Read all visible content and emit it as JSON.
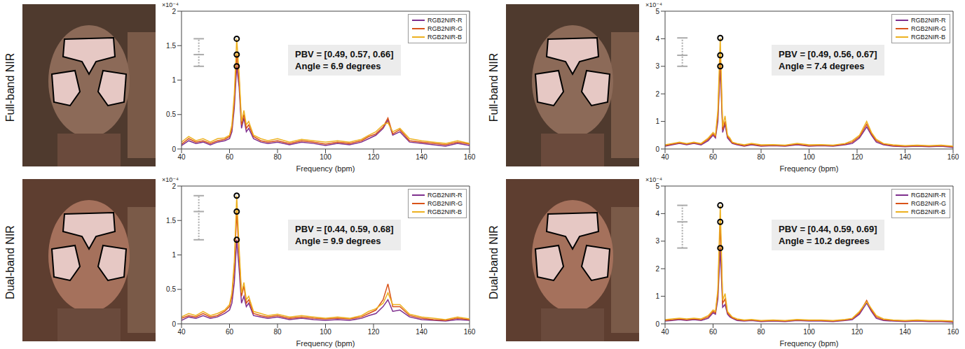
{
  "chart_data": [
    {
      "type": "line",
      "row_label": "Full-band NIR",
      "xlabel": "Frequency (bpm)",
      "y_multiplier": "×10⁻⁴",
      "annotations": [
        "PBV = [0.49, 0.57, 0.66]",
        "Angle = 6.9 degrees"
      ],
      "xlim": [
        40,
        160
      ],
      "xticks": [
        40,
        60,
        80,
        100,
        120,
        140,
        160
      ],
      "ylim": [
        0,
        2
      ],
      "yticks": [
        0,
        0.5,
        1,
        1.5,
        2
      ],
      "legend": "upper right",
      "x": [
        40,
        43,
        46,
        49,
        52,
        55,
        58,
        60,
        61,
        62,
        63,
        64,
        65,
        66,
        67,
        68,
        70,
        73,
        76,
        80,
        85,
        90,
        95,
        100,
        105,
        110,
        115,
        118,
        121,
        124,
        126,
        128,
        131,
        135,
        140,
        145,
        150,
        155,
        160
      ],
      "series": [
        {
          "name": "RGB2NIR-R",
          "color": "#7e2f8e",
          "values": [
            0.05,
            0.12,
            0.08,
            0.1,
            0.06,
            0.1,
            0.12,
            0.15,
            0.25,
            0.6,
            1.2,
            0.9,
            0.3,
            0.45,
            0.25,
            0.3,
            0.15,
            0.1,
            0.08,
            0.1,
            0.06,
            0.1,
            0.08,
            0.05,
            0.08,
            0.06,
            0.1,
            0.15,
            0.2,
            0.3,
            0.42,
            0.2,
            0.25,
            0.1,
            0.08,
            0.06,
            0.04,
            0.08,
            0.05
          ]
        },
        {
          "name": "RGB2NIR-G",
          "color": "#d95319",
          "values": [
            0.07,
            0.15,
            0.1,
            0.12,
            0.08,
            0.12,
            0.14,
            0.18,
            0.3,
            0.7,
            1.37,
            1.0,
            0.35,
            0.5,
            0.3,
            0.35,
            0.18,
            0.12,
            0.1,
            0.12,
            0.08,
            0.12,
            0.1,
            0.07,
            0.1,
            0.08,
            0.12,
            0.18,
            0.22,
            0.32,
            0.45,
            0.22,
            0.28,
            0.12,
            0.1,
            0.08,
            0.06,
            0.1,
            0.07
          ]
        },
        {
          "name": "RGB2NIR-B",
          "color": "#edb120",
          "values": [
            0.1,
            0.18,
            0.12,
            0.15,
            0.1,
            0.15,
            0.16,
            0.2,
            0.35,
            0.8,
            1.6,
            1.1,
            0.4,
            0.56,
            0.35,
            0.4,
            0.2,
            0.15,
            0.12,
            0.15,
            0.1,
            0.14,
            0.12,
            0.1,
            0.12,
            0.1,
            0.14,
            0.2,
            0.25,
            0.35,
            0.38,
            0.25,
            0.3,
            0.15,
            0.12,
            0.1,
            0.08,
            0.12,
            0.08
          ]
        }
      ]
    },
    {
      "type": "line",
      "row_label": "Dual-band NIR",
      "xlabel": "Frequency (bpm)",
      "y_multiplier": "×10⁻⁴",
      "annotations": [
        "PBV = [0.44, 0.59, 0.68]",
        "Angle = 9.9 degrees"
      ],
      "xlim": [
        40,
        160
      ],
      "xticks": [
        40,
        60,
        80,
        100,
        120,
        140,
        160
      ],
      "ylim": [
        0,
        2
      ],
      "yticks": [
        0,
        0.5,
        1,
        1.5,
        2
      ],
      "legend": "upper right",
      "x": [
        40,
        43,
        46,
        49,
        52,
        55,
        58,
        60,
        61,
        62,
        63,
        64,
        65,
        66,
        67,
        68,
        70,
        73,
        76,
        80,
        85,
        90,
        95,
        100,
        105,
        110,
        115,
        118,
        121,
        124,
        126,
        128,
        131,
        135,
        140,
        145,
        150,
        155,
        160
      ],
      "series": [
        {
          "name": "RGB2NIR-R",
          "color": "#7e2f8e",
          "values": [
            0.05,
            0.1,
            0.08,
            0.12,
            0.08,
            0.1,
            0.15,
            0.2,
            0.3,
            0.6,
            1.22,
            0.8,
            0.3,
            0.4,
            0.25,
            0.3,
            0.12,
            0.1,
            0.08,
            0.1,
            0.06,
            0.08,
            0.06,
            0.05,
            0.06,
            0.05,
            0.08,
            0.12,
            0.15,
            0.25,
            0.35,
            0.18,
            0.2,
            0.1,
            0.06,
            0.05,
            0.04,
            0.06,
            0.05
          ]
        },
        {
          "name": "RGB2NIR-G",
          "color": "#d95319",
          "values": [
            0.08,
            0.12,
            0.1,
            0.15,
            0.1,
            0.12,
            0.18,
            0.25,
            0.4,
            0.8,
            1.63,
            1.0,
            0.4,
            0.55,
            0.3,
            0.35,
            0.15,
            0.12,
            0.1,
            0.12,
            0.08,
            0.1,
            0.08,
            0.07,
            0.08,
            0.07,
            0.1,
            0.15,
            0.2,
            0.35,
            0.58,
            0.25,
            0.25,
            0.12,
            0.08,
            0.06,
            0.05,
            0.08,
            0.06
          ]
        },
        {
          "name": "RGB2NIR-B",
          "color": "#edb120",
          "values": [
            0.1,
            0.15,
            0.12,
            0.18,
            0.12,
            0.15,
            0.2,
            0.28,
            0.45,
            0.9,
            1.86,
            1.1,
            0.45,
            0.6,
            0.35,
            0.4,
            0.18,
            0.15,
            0.12,
            0.14,
            0.1,
            0.12,
            0.1,
            0.08,
            0.1,
            0.08,
            0.12,
            0.18,
            0.22,
            0.3,
            0.45,
            0.28,
            0.28,
            0.14,
            0.1,
            0.08,
            0.06,
            0.1,
            0.07
          ]
        }
      ]
    },
    {
      "type": "line",
      "row_label": "Full-band NIR",
      "xlabel": "Frequency (bpm)",
      "y_multiplier": "×10⁻⁴",
      "annotations": [
        "PBV = [0.49, 0.56, 0.67]",
        "Angle = 7.4 degrees"
      ],
      "xlim": [
        40,
        160
      ],
      "xticks": [
        40,
        60,
        80,
        100,
        120,
        140,
        160
      ],
      "ylim": [
        0,
        5
      ],
      "yticks": [
        0,
        1,
        2,
        3,
        4,
        5
      ],
      "legend": "upper right",
      "x": [
        40,
        43,
        46,
        49,
        52,
        55,
        58,
        60,
        61,
        62,
        63,
        64,
        65,
        66,
        67,
        68,
        70,
        73,
        76,
        80,
        85,
        90,
        95,
        100,
        105,
        110,
        115,
        118,
        121,
        124,
        126,
        128,
        131,
        135,
        140,
        145,
        150,
        155,
        160
      ],
      "series": [
        {
          "name": "RGB2NIR-R",
          "color": "#7e2f8e",
          "values": [
            0.1,
            0.15,
            0.2,
            0.15,
            0.2,
            0.15,
            0.3,
            0.5,
            0.4,
            1.0,
            3.0,
            0.6,
            0.9,
            0.4,
            0.3,
            0.2,
            0.15,
            0.1,
            0.15,
            0.1,
            0.12,
            0.1,
            0.15,
            0.1,
            0.12,
            0.1,
            0.15,
            0.2,
            0.4,
            0.8,
            0.5,
            0.25,
            0.15,
            0.1,
            0.08,
            0.1,
            0.08,
            0.1,
            0.06
          ]
        },
        {
          "name": "RGB2NIR-G",
          "color": "#d95319",
          "values": [
            0.12,
            0.18,
            0.22,
            0.18,
            0.22,
            0.18,
            0.35,
            0.55,
            0.45,
            1.2,
            3.4,
            0.7,
            1.0,
            0.45,
            0.35,
            0.22,
            0.18,
            0.12,
            0.18,
            0.12,
            0.14,
            0.12,
            0.18,
            0.12,
            0.14,
            0.12,
            0.18,
            0.25,
            0.45,
            0.9,
            0.55,
            0.3,
            0.18,
            0.12,
            0.1,
            0.12,
            0.1,
            0.12,
            0.08
          ]
        },
        {
          "name": "RGB2NIR-B",
          "color": "#edb120",
          "values": [
            0.15,
            0.2,
            0.25,
            0.2,
            0.25,
            0.2,
            0.4,
            0.6,
            0.5,
            1.4,
            4.03,
            0.8,
            1.2,
            0.5,
            0.4,
            0.25,
            0.2,
            0.15,
            0.2,
            0.15,
            0.16,
            0.14,
            0.2,
            0.15,
            0.16,
            0.14,
            0.2,
            0.3,
            0.5,
            1.0,
            0.6,
            0.35,
            0.2,
            0.15,
            0.12,
            0.14,
            0.12,
            0.14,
            0.1
          ]
        }
      ]
    },
    {
      "type": "line",
      "row_label": "Dual-band NIR",
      "xlabel": "Frequency (bpm)",
      "y_multiplier": "×10⁻⁴",
      "annotations": [
        "PBV = [0.44, 0.59, 0.69]",
        "Angle = 10.2 degrees"
      ],
      "xlim": [
        40,
        160
      ],
      "xticks": [
        40,
        60,
        80,
        100,
        120,
        140,
        160
      ],
      "ylim": [
        0,
        5
      ],
      "yticks": [
        0,
        1,
        2,
        3,
        4,
        5
      ],
      "legend": "upper right",
      "x": [
        40,
        43,
        46,
        49,
        52,
        55,
        58,
        60,
        61,
        62,
        63,
        64,
        65,
        66,
        67,
        68,
        70,
        73,
        76,
        80,
        85,
        90,
        95,
        100,
        105,
        110,
        115,
        118,
        121,
        124,
        126,
        128,
        131,
        135,
        140,
        145,
        150,
        155,
        160
      ],
      "series": [
        {
          "name": "RGB2NIR-R",
          "color": "#7e2f8e",
          "values": [
            0.1,
            0.12,
            0.15,
            0.12,
            0.15,
            0.12,
            0.2,
            0.4,
            0.35,
            0.9,
            2.75,
            0.6,
            0.7,
            0.35,
            0.25,
            0.2,
            0.12,
            0.1,
            0.12,
            0.08,
            0.1,
            0.08,
            0.12,
            0.1,
            0.1,
            0.08,
            0.12,
            0.15,
            0.35,
            0.75,
            0.45,
            0.2,
            0.12,
            0.1,
            0.08,
            0.1,
            0.08,
            0.08,
            0.06
          ]
        },
        {
          "name": "RGB2NIR-G",
          "color": "#d95319",
          "values": [
            0.12,
            0.15,
            0.18,
            0.15,
            0.18,
            0.15,
            0.25,
            0.45,
            0.4,
            1.1,
            3.7,
            0.75,
            0.9,
            0.4,
            0.3,
            0.22,
            0.15,
            0.12,
            0.14,
            0.1,
            0.12,
            0.1,
            0.14,
            0.12,
            0.12,
            0.1,
            0.14,
            0.18,
            0.4,
            0.85,
            0.5,
            0.25,
            0.15,
            0.12,
            0.1,
            0.12,
            0.1,
            0.1,
            0.08
          ]
        },
        {
          "name": "RGB2NIR-B",
          "color": "#edb120",
          "values": [
            0.15,
            0.18,
            0.2,
            0.18,
            0.2,
            0.18,
            0.3,
            0.5,
            0.45,
            1.25,
            4.3,
            0.85,
            1.1,
            0.45,
            0.35,
            0.25,
            0.18,
            0.14,
            0.16,
            0.12,
            0.14,
            0.12,
            0.16,
            0.14,
            0.14,
            0.12,
            0.16,
            0.2,
            0.45,
            0.8,
            0.55,
            0.3,
            0.18,
            0.14,
            0.12,
            0.14,
            0.12,
            0.12,
            0.1
          ]
        }
      ]
    }
  ]
}
